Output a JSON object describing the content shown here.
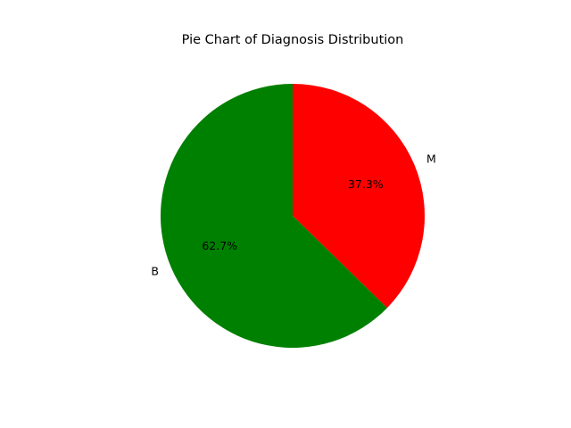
{
  "chart_data": {
    "type": "pie",
    "title": "Pie Chart of Diagnosis Distribution",
    "categories": [
      "M",
      "B"
    ],
    "values": [
      37.3,
      62.7
    ],
    "value_labels": [
      "37.3%",
      "62.7%"
    ],
    "colors": [
      "#ff0000",
      "#008000"
    ],
    "start_angle_deg": 90,
    "direction": "clockwise",
    "legend": "none"
  }
}
